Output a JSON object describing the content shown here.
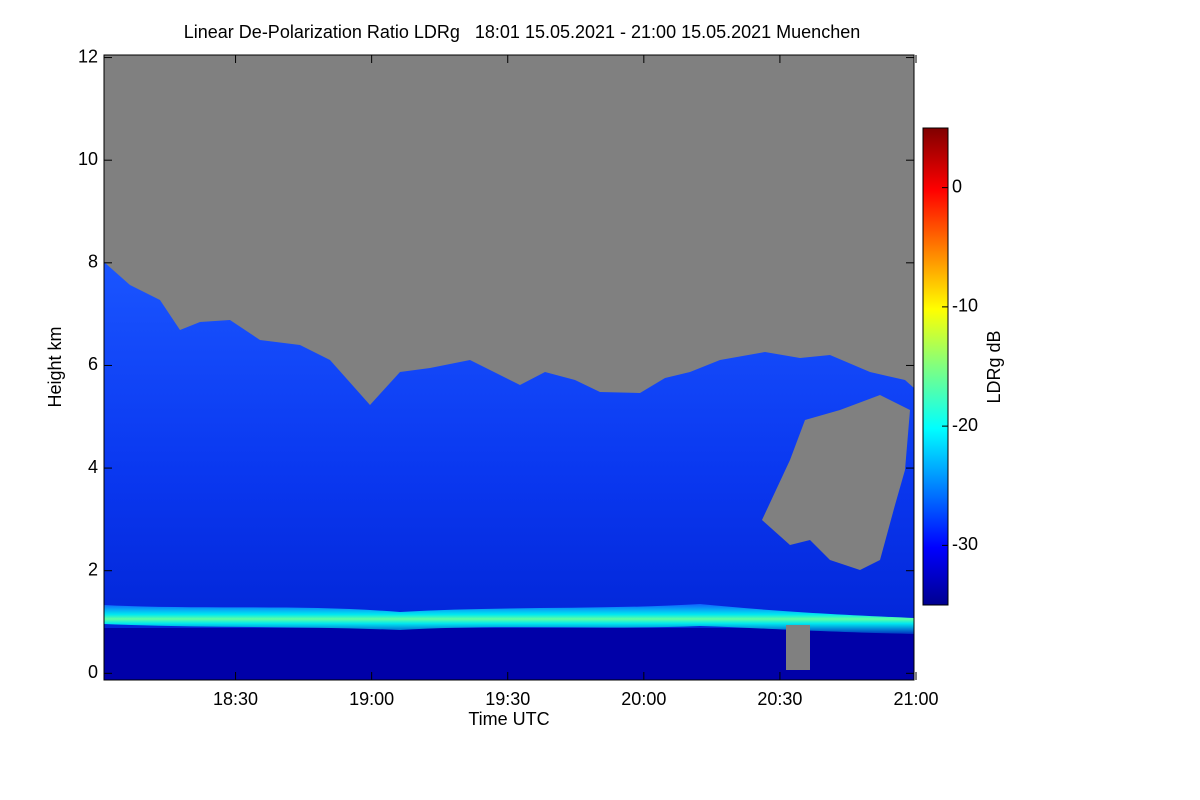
{
  "chart_data": {
    "type": "heatmap",
    "title": "Linear De-Polarization Ratio LDRg   18:01 15.05.2021 - 21:00 15.05.2021 Muenchen",
    "xlabel": "Time UTC",
    "ylabel": "Height km",
    "colorbar_label": "LDRg dB",
    "colormap": "jet",
    "xlim": [
      1081,
      1260
    ],
    "xticks": [
      {
        "value": 1110,
        "label": "18:30"
      },
      {
        "value": 1140,
        "label": "19:00"
      },
      {
        "value": 1170,
        "label": "19:30"
      },
      {
        "value": 1200,
        "label": "20:00"
      },
      {
        "value": 1230,
        "label": "20:30"
      },
      {
        "value": 1260,
        "label": "21:00"
      }
    ],
    "ylim": [
      -0.13,
      12.05
    ],
    "yticks": [
      0,
      2,
      4,
      6,
      8,
      10,
      12
    ],
    "clim": [
      -35,
      5
    ],
    "cticks": [
      -30,
      -20,
      -10,
      0
    ]
  }
}
